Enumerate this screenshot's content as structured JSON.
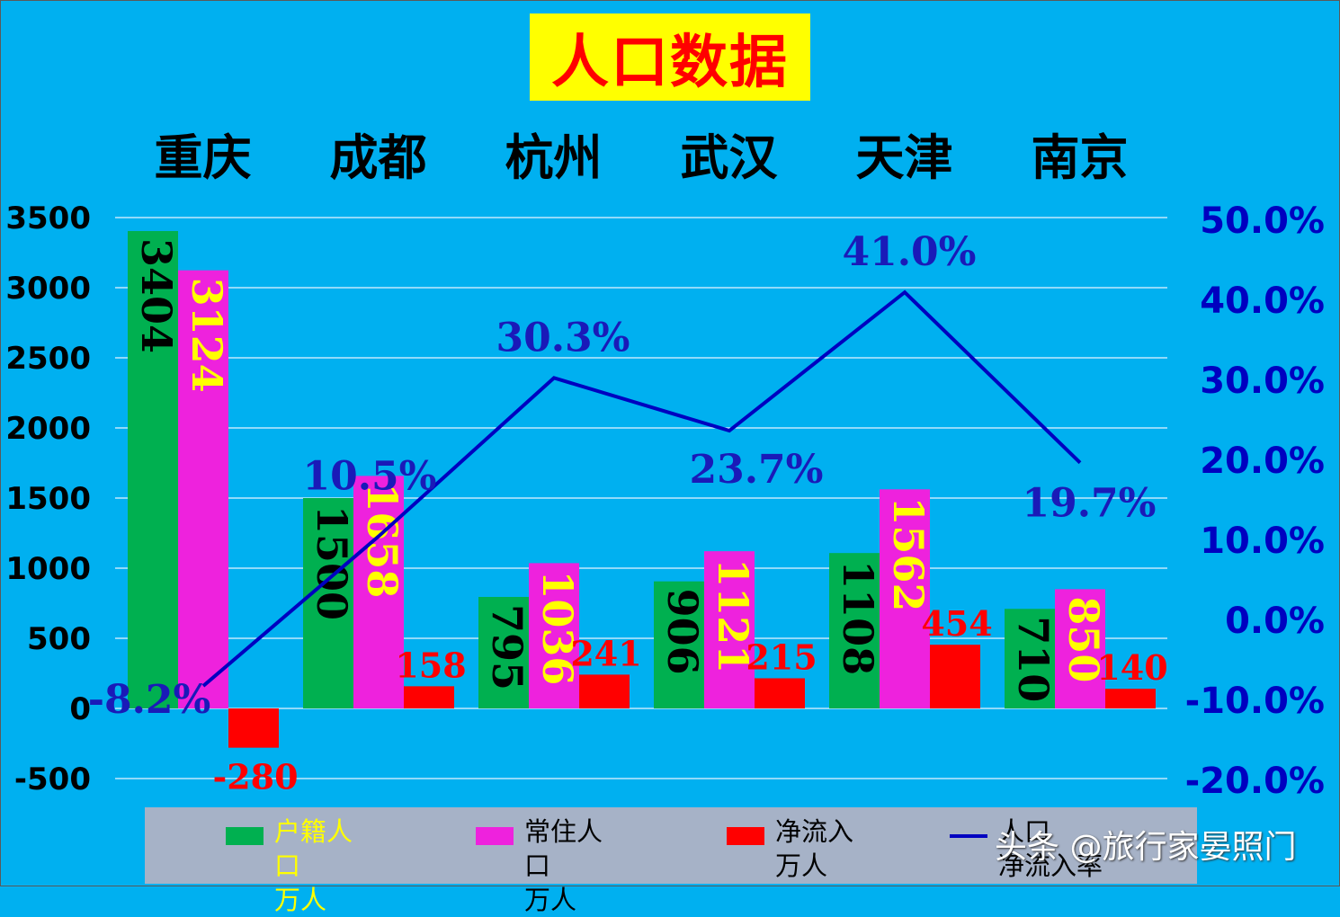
{
  "title": "人口数据",
  "watermark": "头条 @旅行家晏照门",
  "colors": {
    "background": "#00b0f0",
    "registered": "#00b050",
    "resident": "#ee22dd",
    "net_inflow": "#ff0000",
    "rate_line": "#0000c0",
    "green_bar_label": "#000000",
    "magenta_bar_label": "#ffff00",
    "net_label": "#ff0000",
    "rate_label": "#1a1ab8",
    "axis_text": "#000000",
    "right_axis_text": "#0000c0",
    "title_bg": "#ffff00",
    "title_text": "#ff0000",
    "legend_bg": "#a6b2c7",
    "legend_highlight_text": "#ffff00"
  },
  "chart_data": {
    "type": "bar",
    "title": "人口数据",
    "categories": [
      "重庆",
      "成都",
      "杭州",
      "武汉",
      "天津",
      "南京"
    ],
    "series": [
      {
        "name": "户籍人口 万人",
        "values": [
          3404,
          1500,
          795,
          906,
          1108,
          710
        ]
      },
      {
        "name": "常住人口 万人",
        "values": [
          3124,
          1658,
          1036,
          1121,
          1562,
          850
        ]
      },
      {
        "name": "净流入 万人",
        "values": [
          -280,
          158,
          241,
          215,
          454,
          140
        ]
      }
    ],
    "line_series": {
      "name": "人口 净流入率",
      "axis": "right",
      "values": [
        -8.2,
        10.5,
        30.3,
        23.7,
        41.0,
        19.7
      ],
      "labels": [
        "-8.2%",
        "10.5%",
        "30.3%",
        "23.7%",
        "41.0%",
        "19.7%"
      ]
    },
    "ylim": [
      -500,
      3500
    ],
    "yticks": [
      "3500",
      "3000",
      "2500",
      "2000",
      "1500",
      "1000",
      "500",
      "0",
      "-500"
    ],
    "y2lim": [
      -20,
      50
    ],
    "y2ticks": [
      "50.0%",
      "40.0%",
      "30.0%",
      "20.0%",
      "10.0%",
      "0.0%",
      "-10.0%",
      "-20.0%"
    ],
    "value_labels": {
      "registered": [
        "3404",
        "1500",
        "795",
        "906",
        "1108",
        "710"
      ],
      "resident": [
        "3124",
        "1658",
        "1036",
        "1121",
        "1562",
        "850"
      ],
      "net_inflow": [
        "-280",
        "158",
        "241",
        "215",
        "454",
        "140"
      ]
    },
    "grid": true,
    "legend_position": "bottom"
  },
  "legend": [
    {
      "line1": "户籍人口",
      "line2": "万人",
      "kind": "bar",
      "color": "#00b050",
      "highlight": true
    },
    {
      "line1": "常住人口",
      "line2": "万人",
      "kind": "bar",
      "color": "#ee22dd",
      "highlight": false
    },
    {
      "line1": "净流入",
      "line2": "万人",
      "kind": "bar",
      "color": "#ff0000",
      "highlight": false
    },
    {
      "line1": "人口",
      "line2": "净流入率",
      "kind": "line",
      "color": "#0000c0",
      "highlight": false
    }
  ]
}
